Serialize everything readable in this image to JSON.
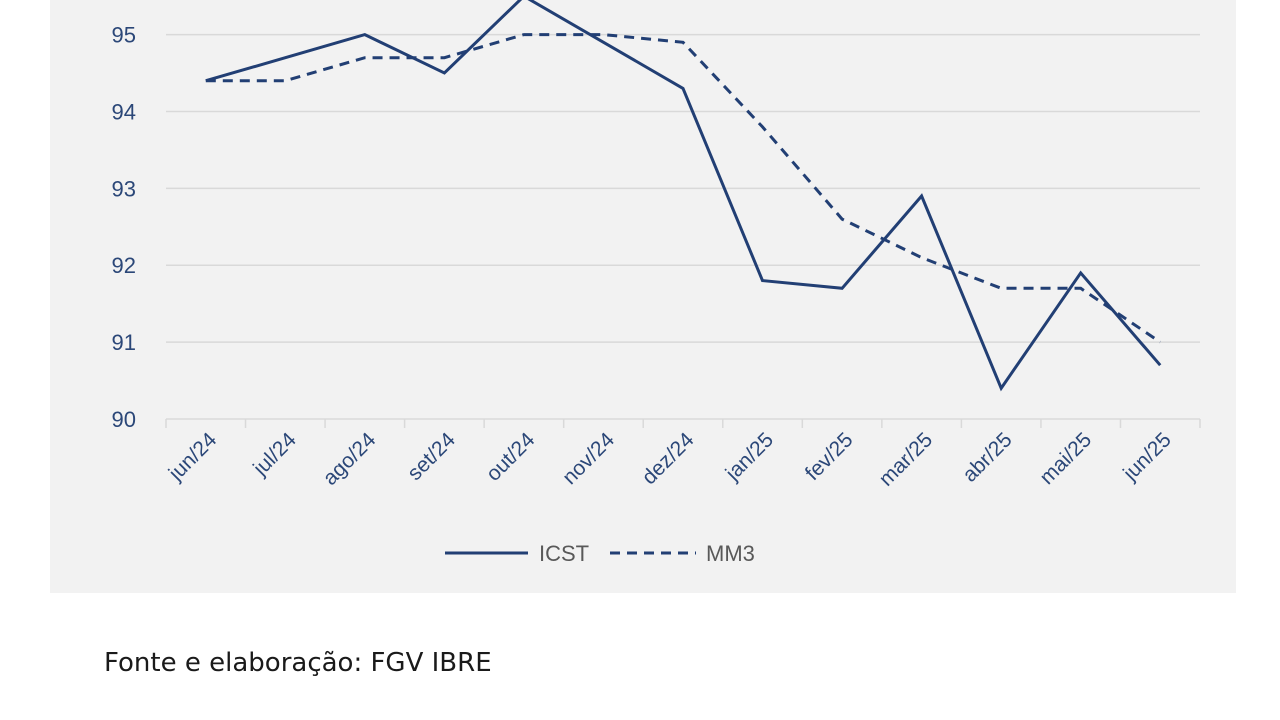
{
  "chart_data": {
    "type": "line",
    "categories": [
      "jun/24",
      "jul/24",
      "ago/24",
      "set/24",
      "out/24",
      "nov/24",
      "dez/24",
      "jan/25",
      "fev/25",
      "mar/25",
      "abr/25",
      "mai/25",
      "jun/25"
    ],
    "series": [
      {
        "name": "ICST",
        "style": "solid",
        "values": [
          94.4,
          94.7,
          95.0,
          94.5,
          95.5,
          94.9,
          94.3,
          91.8,
          91.7,
          92.9,
          90.4,
          91.9,
          90.7
        ]
      },
      {
        "name": "MM3",
        "style": "dashed",
        "values": [
          94.4,
          94.4,
          94.7,
          94.7,
          95.0,
          95.0,
          94.9,
          93.8,
          92.6,
          92.1,
          91.7,
          91.7,
          91.0
        ]
      }
    ],
    "y_ticks": [
      "90",
      "91",
      "92",
      "93",
      "94",
      "95"
    ],
    "ylim": [
      90,
      95.45
    ],
    "grid": true,
    "legend_position": "bottom",
    "colors": {
      "line": "#223f74",
      "grid": "#d9d9d9",
      "tick_text": "#2b4778",
      "legend_text": "#595959",
      "panel": "#f2f2f2"
    }
  },
  "source_note": "Fonte e elaboração: FGV IBRE"
}
